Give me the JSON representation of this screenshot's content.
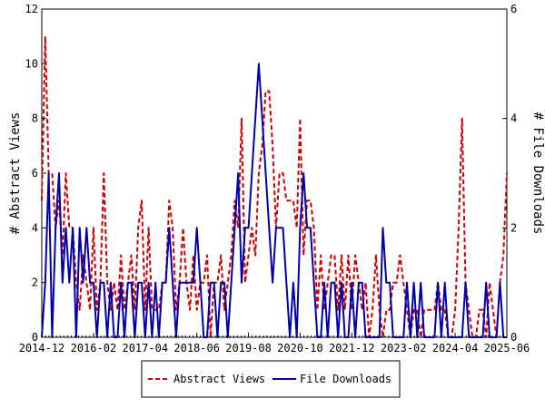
{
  "chart_data": {
    "type": "line",
    "title": "",
    "ylabel_left": "# Abstract Views",
    "ylabel_right": "# File Downloads",
    "ylim_left": [
      0,
      12
    ],
    "ylim_right": [
      0,
      6
    ],
    "yticks_left": [
      "0",
      "2",
      "4",
      "6",
      "8",
      "10",
      "12"
    ],
    "yticks_right": [
      "0",
      "2",
      "4",
      "6"
    ],
    "x_ticks": [
      "2014-12",
      "2016-02",
      "2017-04",
      "2018-06",
      "2019-08",
      "2020-10",
      "2021-12",
      "2023-02",
      "2024-04",
      "2025-06"
    ],
    "legend": {
      "placement": "bottom-center",
      "entries": [
        "Abstract Views",
        "File Downloads"
      ]
    },
    "series": [
      {
        "name": "Abstract Views",
        "axis": "left",
        "color": "#cc0000",
        "style": "dashed",
        "values": [
          5,
          11,
          6,
          6,
          4,
          5,
          3,
          6,
          4,
          4,
          2,
          1,
          3,
          2,
          1,
          4,
          1,
          2,
          6,
          2,
          1,
          2,
          1,
          3,
          1,
          2,
          3,
          1,
          4,
          5,
          1,
          4,
          1,
          1,
          1,
          2,
          2,
          5,
          4,
          1,
          2,
          4,
          2,
          1,
          3,
          1,
          2,
          2,
          3,
          0,
          2,
          2,
          3,
          1,
          2,
          3,
          5,
          4,
          8,
          2,
          3,
          4,
          3,
          6,
          7,
          9,
          9,
          7,
          4,
          6,
          6,
          5,
          5,
          5,
          4,
          8,
          3,
          5,
          5,
          4,
          1,
          3,
          1,
          2,
          3,
          3,
          1,
          3,
          1,
          3,
          1,
          3,
          2,
          1,
          2,
          0,
          1,
          3,
          1,
          0,
          1,
          1,
          2,
          2,
          3,
          2,
          1,
          0,
          1,
          1,
          0,
          1,
          1,
          1,
          1,
          2,
          1,
          1,
          0,
          0,
          1,
          4,
          8,
          2,
          1,
          0,
          0,
          1,
          1,
          0,
          2,
          1,
          0,
          2,
          3,
          6
        ]
      },
      {
        "name": "File Downloads",
        "axis": "right",
        "color": "#0000aa",
        "style": "solid",
        "values": [
          0,
          1,
          3,
          0,
          2,
          3,
          1,
          2,
          1,
          2,
          0,
          2,
          1,
          2,
          1,
          1,
          0,
          1,
          1,
          0,
          1,
          0,
          0,
          1,
          0,
          1,
          1,
          0,
          1,
          1,
          0,
          1,
          0,
          1,
          0,
          1,
          1,
          2,
          1,
          0,
          1,
          1,
          1,
          1,
          1,
          2,
          1,
          0,
          0,
          1,
          1,
          0,
          1,
          1,
          0,
          1,
          2,
          3,
          1,
          2,
          2,
          3,
          4,
          5,
          4,
          3,
          2,
          1,
          2,
          2,
          2,
          1,
          0,
          1,
          0,
          2,
          3,
          2,
          2,
          1,
          0,
          0,
          1,
          0,
          1,
          1,
          0,
          1,
          0,
          0,
          1,
          0,
          1,
          1,
          0,
          0,
          0,
          0,
          0,
          2,
          1,
          1,
          0,
          0,
          0,
          0,
          1,
          0,
          1,
          0,
          1,
          0,
          0,
          0,
          0,
          1,
          0,
          1,
          0,
          0,
          0,
          0,
          0,
          1,
          0,
          0,
          0,
          0,
          0,
          1,
          0,
          0,
          0,
          1,
          0,
          0
        ]
      }
    ]
  }
}
